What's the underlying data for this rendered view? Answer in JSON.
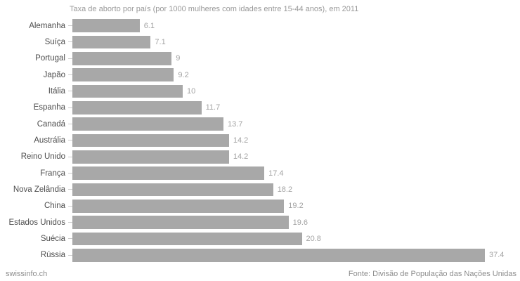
{
  "chart_data": {
    "type": "bar",
    "orientation": "horizontal",
    "title": "Taxa de aborto por país (por 1000 mulheres com idades entre 15-44 anos), em 2011",
    "categories": [
      "Alemanha",
      "Suíça",
      "Portugal",
      "Japão",
      "Itália",
      "Espanha",
      "Canadá",
      "Austrália",
      "Reino Unido",
      "França",
      "Nova Zelândia",
      "China",
      "Estados Unidos",
      "Suécia",
      "Rússia"
    ],
    "values": [
      6.1,
      7.1,
      9,
      9.2,
      10,
      11.7,
      13.7,
      14.2,
      14.2,
      17.4,
      18.2,
      19.2,
      19.6,
      20.8,
      37.4
    ],
    "value_labels": [
      "6.1",
      "7.1",
      "9",
      "9.2",
      "10",
      "11.7",
      "13.7",
      "14.2",
      "14.2",
      "17.4",
      "18.2",
      "19.2",
      "19.6",
      "20.8",
      "37.4"
    ],
    "xlim": [
      0,
      37.4
    ],
    "grid": false,
    "legend": "none",
    "bar_color": "#a8a8a8",
    "category_label_color": "#4d4d4d",
    "value_label_color": "#a3a3a3",
    "title_color": "#999999"
  },
  "footer": {
    "left": "swissinfo.ch",
    "right": "Fonte: Divisão de População das Nações Unidas"
  }
}
